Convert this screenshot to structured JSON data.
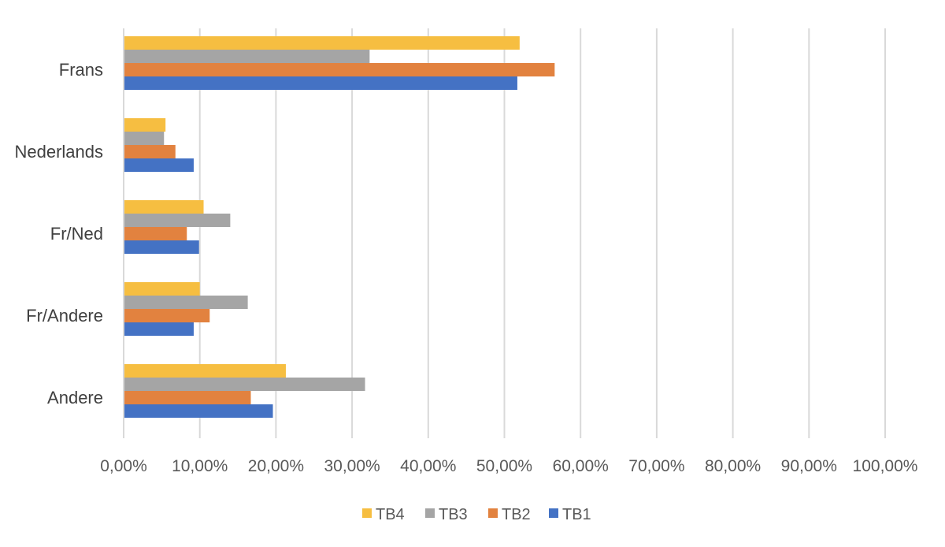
{
  "chart_data": {
    "type": "bar",
    "orientation": "horizontal",
    "categories": [
      "Frans",
      "Nederlands",
      "Fr/Ned",
      "Fr/Andere",
      "Andere"
    ],
    "series": [
      {
        "name": "TB4",
        "color": "#F6BE41",
        "values": [
          52.0,
          5.5,
          10.5,
          10.0,
          21.3
        ]
      },
      {
        "name": "TB3",
        "color": "#A5A5A5",
        "values": [
          32.3,
          5.3,
          14.0,
          16.3,
          31.7
        ]
      },
      {
        "name": "TB2",
        "color": "#E2823F",
        "values": [
          56.6,
          6.8,
          8.3,
          11.3,
          16.7
        ]
      },
      {
        "name": "TB1",
        "color": "#4472C4",
        "values": [
          51.7,
          9.2,
          9.9,
          9.2,
          19.6
        ]
      }
    ],
    "xlim": [
      0,
      100
    ],
    "xticks": [
      "0,00%",
      "10,00%",
      "20,00%",
      "30,00%",
      "40,00%",
      "50,00%",
      "60,00%",
      "70,00%",
      "80,00%",
      "90,00%",
      "100,00%"
    ],
    "title": "",
    "xlabel": "",
    "ylabel": "",
    "grid": "vertical",
    "legend": {
      "position": "bottom",
      "entries": [
        "TB4",
        "TB3",
        "TB2",
        "TB1"
      ]
    }
  }
}
